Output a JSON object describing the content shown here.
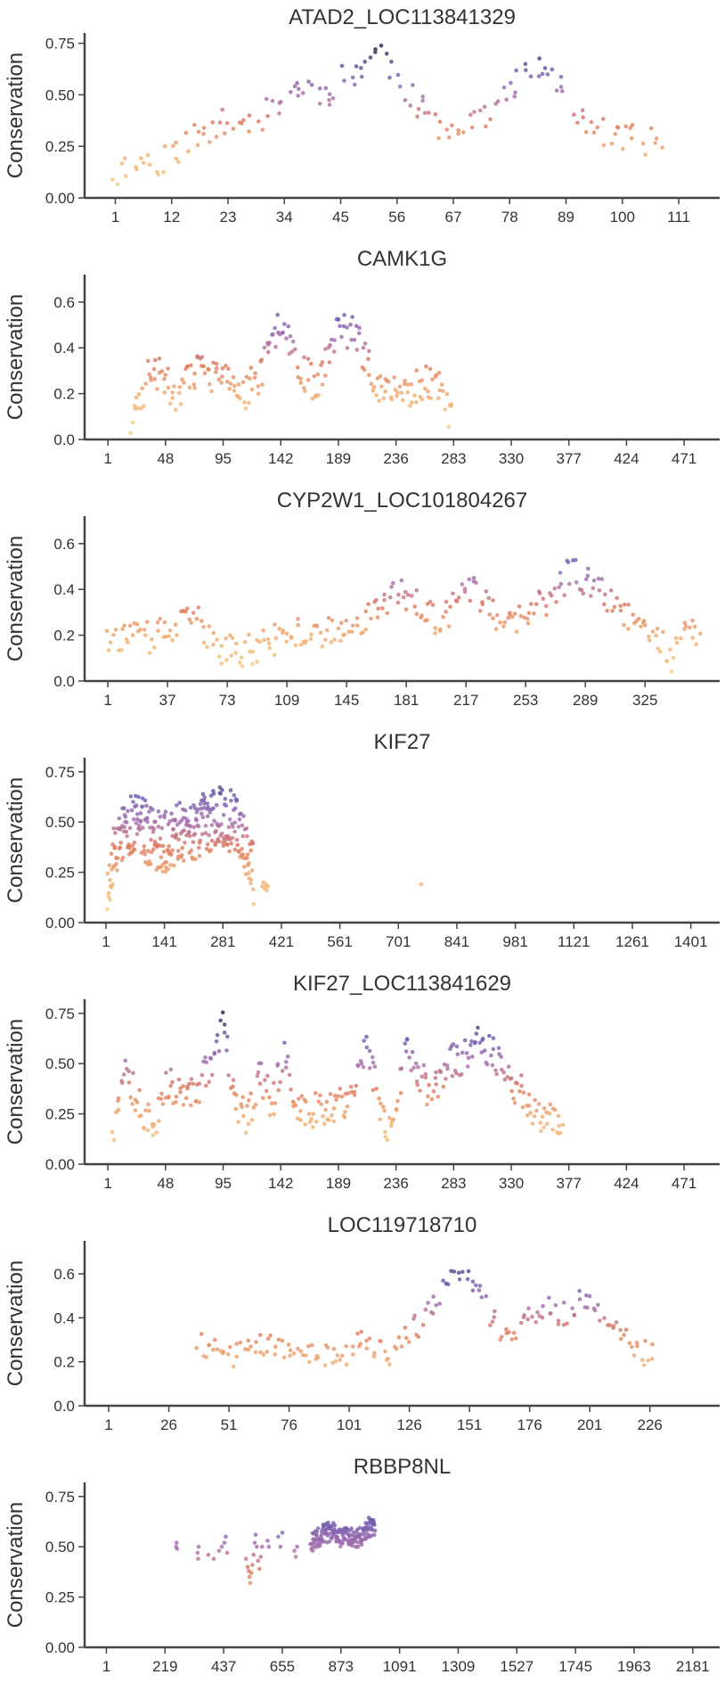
{
  "chart_data": [
    {
      "type": "scatter",
      "title": "ATAD2_LOC113841329",
      "ylabel": "Conservation",
      "xlabel": "",
      "xlim": [
        -5,
        119
      ],
      "ylim": [
        0,
        0.8
      ],
      "xticks": [
        1,
        12,
        23,
        34,
        45,
        56,
        67,
        78,
        89,
        100,
        111
      ],
      "yticks": [
        0.0,
        0.25,
        0.5,
        0.75
      ],
      "ytick_labels": [
        "0.00",
        "0.25",
        "0.50",
        "0.75"
      ],
      "anchors": [
        [
          1,
          0.12
        ],
        [
          5,
          0.17
        ],
        [
          10,
          0.18
        ],
        [
          14,
          0.25
        ],
        [
          18,
          0.32
        ],
        [
          22,
          0.36
        ],
        [
          26,
          0.36
        ],
        [
          30,
          0.4
        ],
        [
          34,
          0.5
        ],
        [
          38,
          0.55
        ],
        [
          42,
          0.5
        ],
        [
          45,
          0.58
        ],
        [
          48,
          0.6
        ],
        [
          51,
          0.7
        ],
        [
          53,
          0.72
        ],
        [
          55,
          0.62
        ],
        [
          58,
          0.52
        ],
        [
          60,
          0.45
        ],
        [
          63,
          0.37
        ],
        [
          66,
          0.34
        ],
        [
          70,
          0.38
        ],
        [
          74,
          0.42
        ],
        [
          77,
          0.48
        ],
        [
          80,
          0.58
        ],
        [
          83,
          0.62
        ],
        [
          86,
          0.6
        ],
        [
          89,
          0.48
        ],
        [
          93,
          0.38
        ],
        [
          97,
          0.3
        ],
        [
          101,
          0.3
        ],
        [
          105,
          0.27
        ],
        [
          107,
          0.27
        ]
      ],
      "x_start": 1,
      "x_end": 107,
      "count": 150,
      "jitter": 0.07,
      "seed": 11
    },
    {
      "type": "scatter",
      "title": "CAMK1G",
      "ylabel": "Conservation",
      "xlabel": "",
      "xlim": [
        -18,
        500
      ],
      "ylim": [
        0,
        0.72
      ],
      "xticks": [
        1,
        48,
        95,
        142,
        189,
        236,
        283,
        330,
        377,
        424,
        471
      ],
      "yticks": [
        0.0,
        0.2,
        0.4,
        0.6
      ],
      "ytick_labels": [
        "0.0",
        "0.2",
        "0.4",
        "0.6"
      ],
      "anchors": [
        [
          20,
          0.05
        ],
        [
          28,
          0.18
        ],
        [
          35,
          0.3
        ],
        [
          45,
          0.28
        ],
        [
          55,
          0.2
        ],
        [
          65,
          0.24
        ],
        [
          75,
          0.3
        ],
        [
          88,
          0.28
        ],
        [
          100,
          0.24
        ],
        [
          112,
          0.2
        ],
        [
          122,
          0.26
        ],
        [
          132,
          0.36
        ],
        [
          140,
          0.5
        ],
        [
          145,
          0.55
        ],
        [
          150,
          0.42
        ],
        [
          160,
          0.3
        ],
        [
          170,
          0.24
        ],
        [
          180,
          0.36
        ],
        [
          188,
          0.48
        ],
        [
          195,
          0.46
        ],
        [
          202,
          0.48
        ],
        [
          210,
          0.36
        ],
        [
          218,
          0.28
        ],
        [
          228,
          0.2
        ],
        [
          240,
          0.2
        ],
        [
          255,
          0.24
        ],
        [
          265,
          0.26
        ],
        [
          273,
          0.24
        ],
        [
          282,
          0.06
        ]
      ],
      "x_start": 20,
      "x_end": 282,
      "count": 220,
      "jitter": 0.08,
      "seed": 23
    },
    {
      "type": "scatter",
      "title": "CYP2W1_LOC101804267",
      "ylabel": "Conservation",
      "xlabel": "",
      "xlim": [
        -13,
        370
      ],
      "ylim": [
        0,
        0.72
      ],
      "xticks": [
        1,
        37,
        73,
        109,
        145,
        181,
        217,
        253,
        289,
        325
      ],
      "yticks": [
        0.0,
        0.2,
        0.4,
        0.6
      ],
      "ytick_labels": [
        "0.0",
        "0.2",
        "0.4",
        "0.6"
      ],
      "anchors": [
        [
          1,
          0.2
        ],
        [
          20,
          0.18
        ],
        [
          40,
          0.22
        ],
        [
          55,
          0.28
        ],
        [
          65,
          0.15
        ],
        [
          80,
          0.12
        ],
        [
          95,
          0.16
        ],
        [
          110,
          0.2
        ],
        [
          125,
          0.22
        ],
        [
          140,
          0.2
        ],
        [
          152,
          0.24
        ],
        [
          162,
          0.34
        ],
        [
          175,
          0.38
        ],
        [
          190,
          0.34
        ],
        [
          200,
          0.24
        ],
        [
          208,
          0.3
        ],
        [
          218,
          0.42
        ],
        [
          228,
          0.36
        ],
        [
          238,
          0.22
        ],
        [
          248,
          0.26
        ],
        [
          260,
          0.32
        ],
        [
          270,
          0.38
        ],
        [
          280,
          0.48
        ],
        [
          290,
          0.44
        ],
        [
          300,
          0.4
        ],
        [
          310,
          0.28
        ],
        [
          320,
          0.3
        ],
        [
          332,
          0.2
        ],
        [
          342,
          0.1
        ],
        [
          350,
          0.2
        ],
        [
          358,
          0.22
        ]
      ],
      "x_start": 1,
      "x_end": 358,
      "count": 280,
      "jitter": 0.07,
      "seed": 37
    },
    {
      "type": "scatter",
      "title": "KIF27",
      "ylabel": "Conservation",
      "xlabel": "",
      "xlim": [
        -50,
        1470
      ],
      "ylim": [
        0,
        0.82
      ],
      "xticks": [
        1,
        141,
        281,
        421,
        561,
        701,
        841,
        981,
        1121,
        1261,
        1401
      ],
      "yticks": [
        0.0,
        0.25,
        0.5,
        0.75
      ],
      "ytick_labels": [
        "0.00",
        "0.25",
        "0.50",
        "0.75"
      ],
      "anchors": [
        [
          5,
          0.2
        ],
        [
          20,
          0.36
        ],
        [
          40,
          0.42
        ],
        [
          60,
          0.48
        ],
        [
          80,
          0.5
        ],
        [
          100,
          0.44
        ],
        [
          120,
          0.42
        ],
        [
          140,
          0.4
        ],
        [
          160,
          0.42
        ],
        [
          180,
          0.46
        ],
        [
          200,
          0.4
        ],
        [
          220,
          0.46
        ],
        [
          240,
          0.52
        ],
        [
          260,
          0.5
        ],
        [
          280,
          0.54
        ],
        [
          300,
          0.5
        ],
        [
          320,
          0.46
        ],
        [
          340,
          0.36
        ],
        [
          355,
          0.22
        ]
      ],
      "x_start": 5,
      "x_end": 355,
      "count": 330,
      "jitter": 0.16,
      "extra_points": [
        [
          375,
          0.18
        ],
        [
          378,
          0.2
        ],
        [
          381,
          0.17
        ],
        [
          384,
          0.19
        ],
        [
          386,
          0.16
        ],
        [
          389,
          0.18
        ],
        [
          756,
          0.19
        ]
      ],
      "seed": 53
    },
    {
      "type": "scatter",
      "title": "KIF27_LOC113841629",
      "ylabel": "Conservation",
      "xlabel": "",
      "xlim": [
        -18,
        500
      ],
      "ylim": [
        0,
        0.82
      ],
      "xticks": [
        1,
        48,
        95,
        142,
        189,
        236,
        283,
        330,
        377,
        424,
        471
      ],
      "yticks": [
        0.0,
        0.25,
        0.5,
        0.75
      ],
      "ytick_labels": [
        "0.00",
        "0.25",
        "0.50",
        "0.75"
      ],
      "anchors": [
        [
          5,
          0.12
        ],
        [
          15,
          0.5
        ],
        [
          25,
          0.3
        ],
        [
          38,
          0.18
        ],
        [
          48,
          0.42
        ],
        [
          60,
          0.36
        ],
        [
          72,
          0.34
        ],
        [
          85,
          0.5
        ],
        [
          95,
          0.68
        ],
        [
          105,
          0.32
        ],
        [
          115,
          0.22
        ],
        [
          125,
          0.46
        ],
        [
          135,
          0.3
        ],
        [
          145,
          0.55
        ],
        [
          155,
          0.3
        ],
        [
          165,
          0.26
        ],
        [
          178,
          0.28
        ],
        [
          190,
          0.3
        ],
        [
          202,
          0.36
        ],
        [
          212,
          0.6
        ],
        [
          222,
          0.3
        ],
        [
          232,
          0.14
        ],
        [
          245,
          0.6
        ],
        [
          255,
          0.46
        ],
        [
          265,
          0.32
        ],
        [
          278,
          0.5
        ],
        [
          290,
          0.52
        ],
        [
          300,
          0.62
        ],
        [
          312,
          0.58
        ],
        [
          322,
          0.5
        ],
        [
          332,
          0.4
        ],
        [
          345,
          0.3
        ],
        [
          358,
          0.22
        ],
        [
          372,
          0.2
        ]
      ],
      "x_start": 5,
      "x_end": 372,
      "count": 330,
      "jitter": 0.09,
      "seed": 71
    },
    {
      "type": "scatter",
      "title": "LOC119718710",
      "ylabel": "Conservation",
      "xlabel": "",
      "xlim": [
        -9,
        255
      ],
      "ylim": [
        0,
        0.75
      ],
      "xticks": [
        1,
        26,
        51,
        76,
        101,
        126,
        151,
        176,
        201,
        226
      ],
      "yticks": [
        0.0,
        0.2,
        0.4,
        0.6
      ],
      "ytick_labels": [
        "0.0",
        "0.2",
        "0.4",
        "0.6"
      ],
      "anchors": [
        [
          38,
          0.28
        ],
        [
          45,
          0.24
        ],
        [
          52,
          0.22
        ],
        [
          58,
          0.28
        ],
        [
          64,
          0.3
        ],
        [
          70,
          0.26
        ],
        [
          98,
          0.22
        ],
        [
          105,
          0.3
        ],
        [
          112,
          0.26
        ],
        [
          118,
          0.22
        ],
        [
          124,
          0.3
        ],
        [
          132,
          0.4
        ],
        [
          140,
          0.52
        ],
        [
          146,
          0.58
        ],
        [
          152,
          0.56
        ],
        [
          158,
          0.46
        ],
        [
          165,
          0.3
        ],
        [
          172,
          0.36
        ],
        [
          178,
          0.44
        ],
        [
          185,
          0.44
        ],
        [
          192,
          0.4
        ],
        [
          198,
          0.52
        ],
        [
          204,
          0.44
        ],
        [
          212,
          0.34
        ],
        [
          220,
          0.26
        ],
        [
          228,
          0.22
        ]
      ],
      "x_start": 38,
      "x_end": 228,
      "count": 180,
      "jitter": 0.06,
      "seed": 89
    },
    {
      "type": "scatter",
      "title": "RBBP8NL",
      "ylabel": "Conservation",
      "xlabel": "",
      "xlim": [
        -80,
        2281
      ],
      "ylim": [
        0,
        0.82
      ],
      "xticks": [
        1,
        219,
        437,
        655,
        873,
        1091,
        1309,
        1527,
        1745,
        1963,
        2181
      ],
      "yticks": [
        0.0,
        0.25,
        0.5,
        0.75
      ],
      "ytick_labels": [
        "0.00",
        "0.25",
        "0.50",
        "0.75"
      ],
      "anchors": [
        [
          760,
          0.52
        ],
        [
          800,
          0.56
        ],
        [
          840,
          0.58
        ],
        [
          870,
          0.54
        ],
        [
          900,
          0.56
        ],
        [
          940,
          0.54
        ],
        [
          980,
          0.6
        ],
        [
          1000,
          0.58
        ]
      ],
      "x_start": 760,
      "x_end": 1000,
      "count": 170,
      "jitter": 0.05,
      "extra_points": [
        [
          260,
          0.5
        ],
        [
          262,
          0.52
        ],
        [
          264,
          0.49
        ],
        [
          340,
          0.47
        ],
        [
          342,
          0.44
        ],
        [
          344,
          0.5
        ],
        [
          380,
          0.46
        ],
        [
          400,
          0.44
        ],
        [
          420,
          0.48
        ],
        [
          430,
          0.5
        ],
        [
          440,
          0.52
        ],
        [
          445,
          0.55
        ],
        [
          450,
          0.47
        ],
        [
          520,
          0.44
        ],
        [
          526,
          0.4
        ],
        [
          530,
          0.38
        ],
        [
          533,
          0.35
        ],
        [
          536,
          0.32
        ],
        [
          540,
          0.37
        ],
        [
          544,
          0.41
        ],
        [
          548,
          0.46
        ],
        [
          552,
          0.52
        ],
        [
          556,
          0.56
        ],
        [
          560,
          0.5
        ],
        [
          565,
          0.43
        ],
        [
          570,
          0.39
        ],
        [
          575,
          0.45
        ],
        [
          580,
          0.5
        ],
        [
          600,
          0.53
        ],
        [
          605,
          0.5
        ],
        [
          640,
          0.55
        ],
        [
          648,
          0.5
        ],
        [
          655,
          0.57
        ],
        [
          700,
          0.48
        ],
        [
          705,
          0.45
        ],
        [
          710,
          0.5
        ]
      ],
      "seed": 101
    }
  ]
}
